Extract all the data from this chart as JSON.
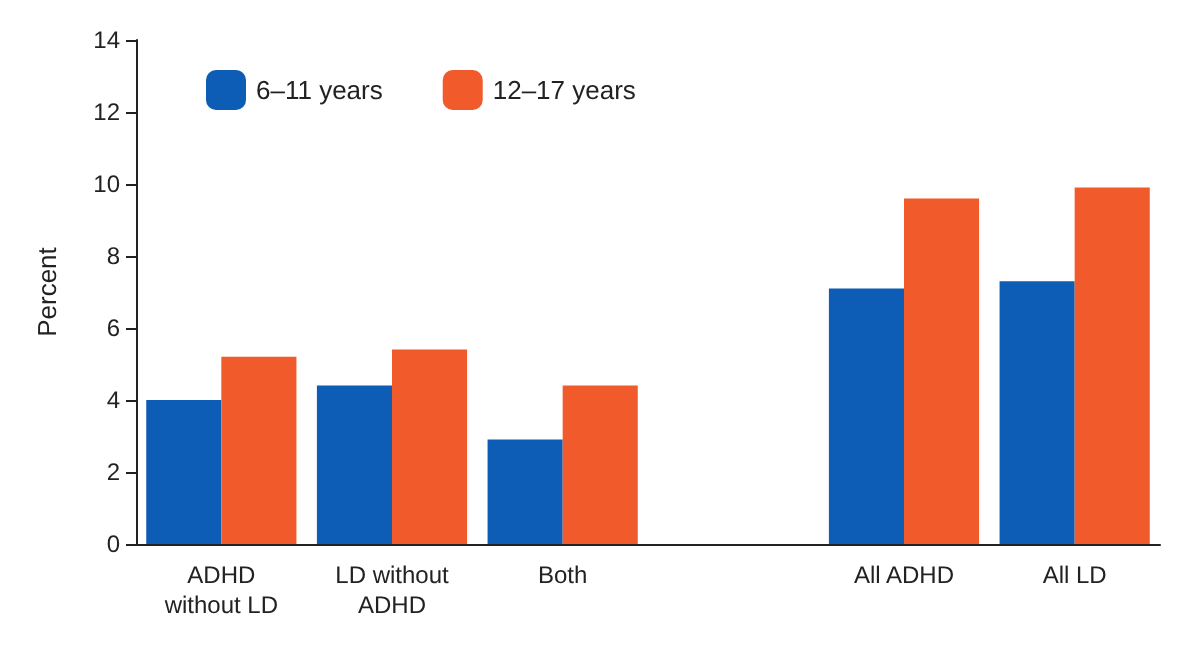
{
  "chart_data": {
    "type": "bar",
    "ylabel": "Percent",
    "categories": [
      "ADHD\nwithout LD",
      "LD without\nADHD",
      "Both",
      null,
      "All ADHD",
      "All LD"
    ],
    "series": [
      {
        "name": "6–11 years",
        "color": "#0d5cb6",
        "values": [
          4.0,
          4.4,
          2.9,
          null,
          7.1,
          7.3
        ]
      },
      {
        "name": "12–17 years",
        "color": "#f15a2b",
        "values": [
          5.2,
          5.4,
          4.4,
          null,
          9.6,
          9.9
        ]
      }
    ],
    "ylim": [
      0,
      14
    ],
    "yticks": [
      0,
      2,
      4,
      6,
      8,
      10,
      12,
      14
    ],
    "grid": false,
    "legend": "top left"
  }
}
